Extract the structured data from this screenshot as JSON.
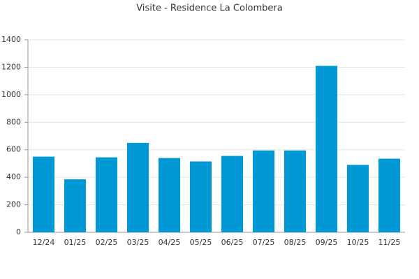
{
  "chart_data": {
    "type": "bar",
    "title": "Visite - Residence La Colombera",
    "categories": [
      "12/24",
      "01/25",
      "02/25",
      "03/25",
      "04/25",
      "05/25",
      "06/25",
      "07/25",
      "08/25",
      "09/25",
      "10/25",
      "11/25"
    ],
    "values": [
      550,
      385,
      545,
      650,
      540,
      515,
      555,
      595,
      595,
      1210,
      490,
      535
    ],
    "color": "#0099d6",
    "ylim": [
      0,
      1400
    ],
    "yticks": [
      0,
      200,
      400,
      600,
      800,
      1000,
      1200,
      1400
    ],
    "grid": true
  }
}
